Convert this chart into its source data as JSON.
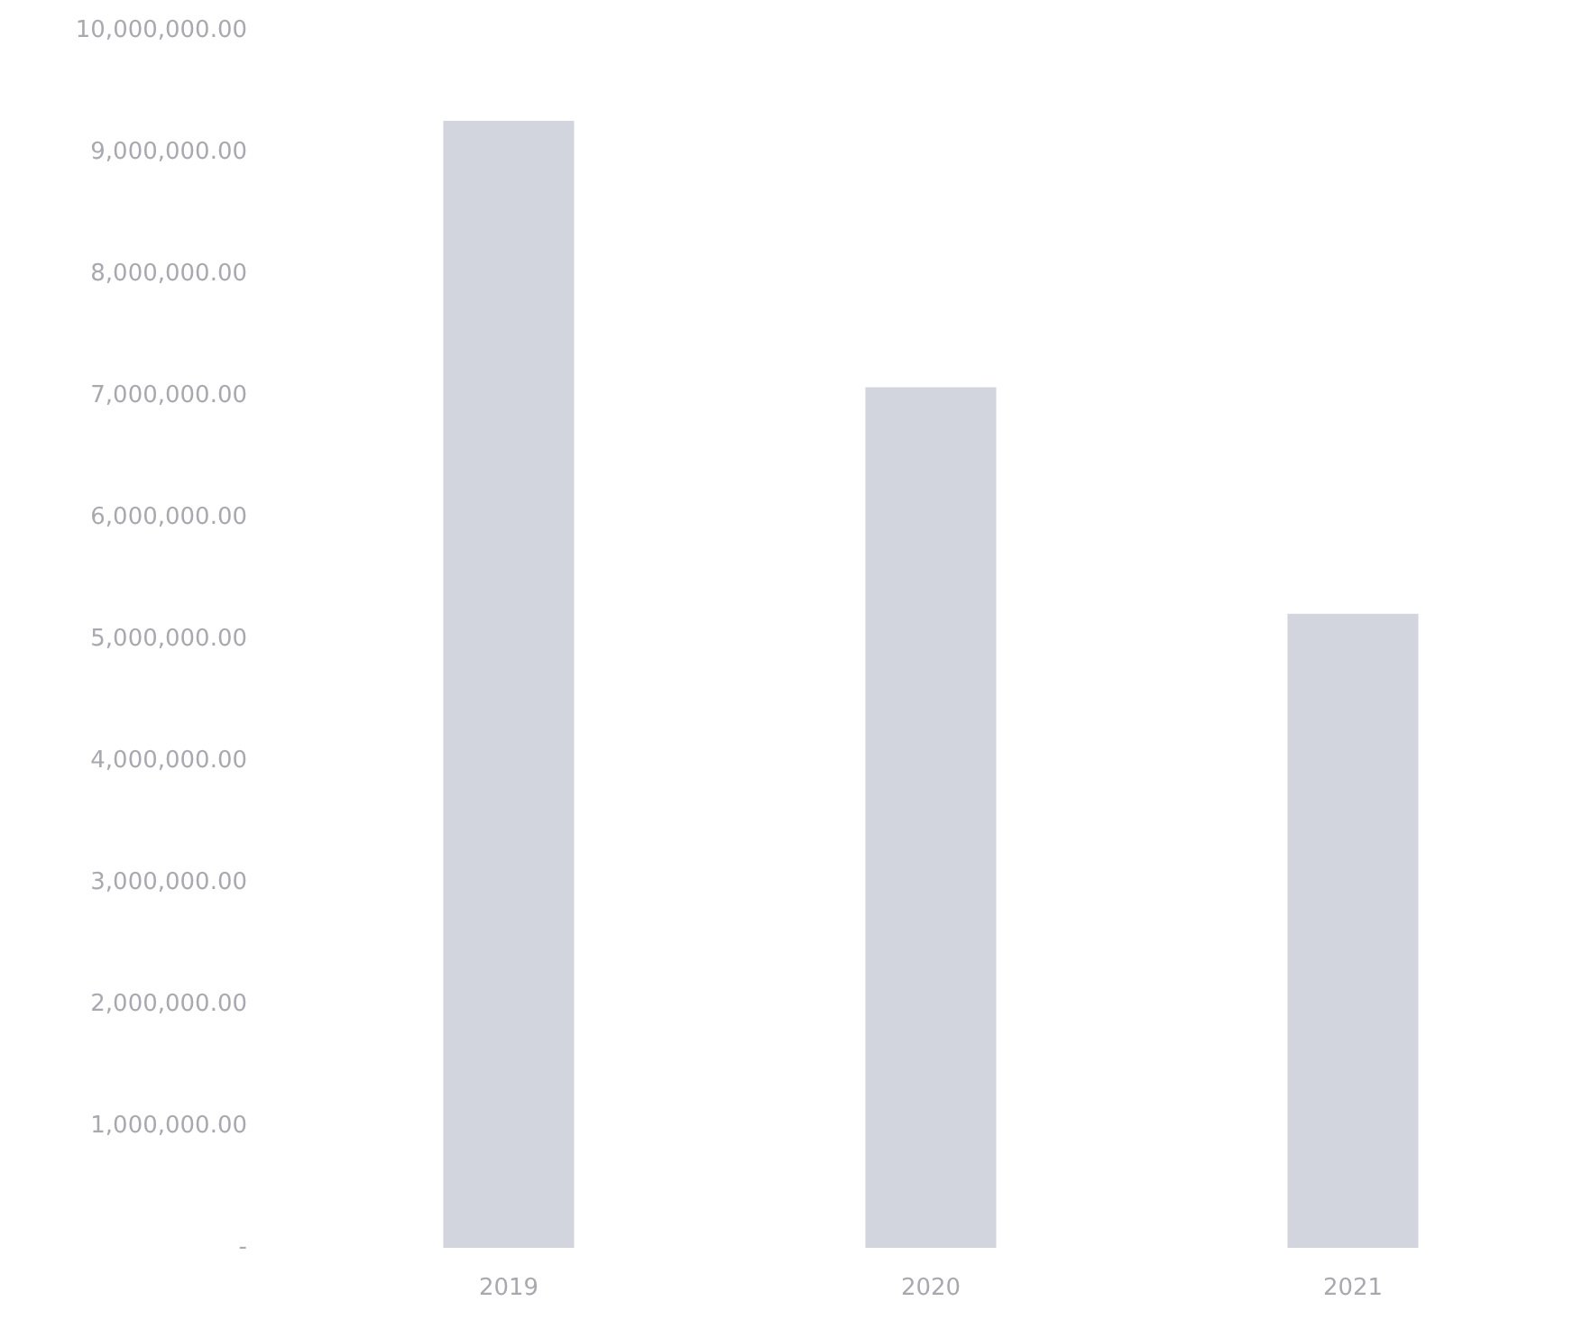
{
  "chart_data": {
    "type": "bar",
    "categories": [
      "2019",
      "2020",
      "2021"
    ],
    "values": [
      9260000,
      7070000,
      5210000
    ],
    "color": "#d3d5de",
    "ylim": [
      0,
      10000000
    ],
    "yticks": [
      {
        "value": 0,
        "label": "-"
      },
      {
        "value": 1000000,
        "label": "1,000,000.00"
      },
      {
        "value": 2000000,
        "label": "2,000,000.00"
      },
      {
        "value": 3000000,
        "label": "3,000,000.00"
      },
      {
        "value": 4000000,
        "label": "4,000,000.00"
      },
      {
        "value": 5000000,
        "label": "5,000,000.00"
      },
      {
        "value": 6000000,
        "label": "6,000,000.00"
      },
      {
        "value": 7000000,
        "label": "7,000,000.00"
      },
      {
        "value": 8000000,
        "label": "8,000,000.00"
      },
      {
        "value": 9000000,
        "label": "9,000,000.00"
      },
      {
        "value": 10000000,
        "label": "10,000,000.00"
      }
    ],
    "grid": false
  }
}
